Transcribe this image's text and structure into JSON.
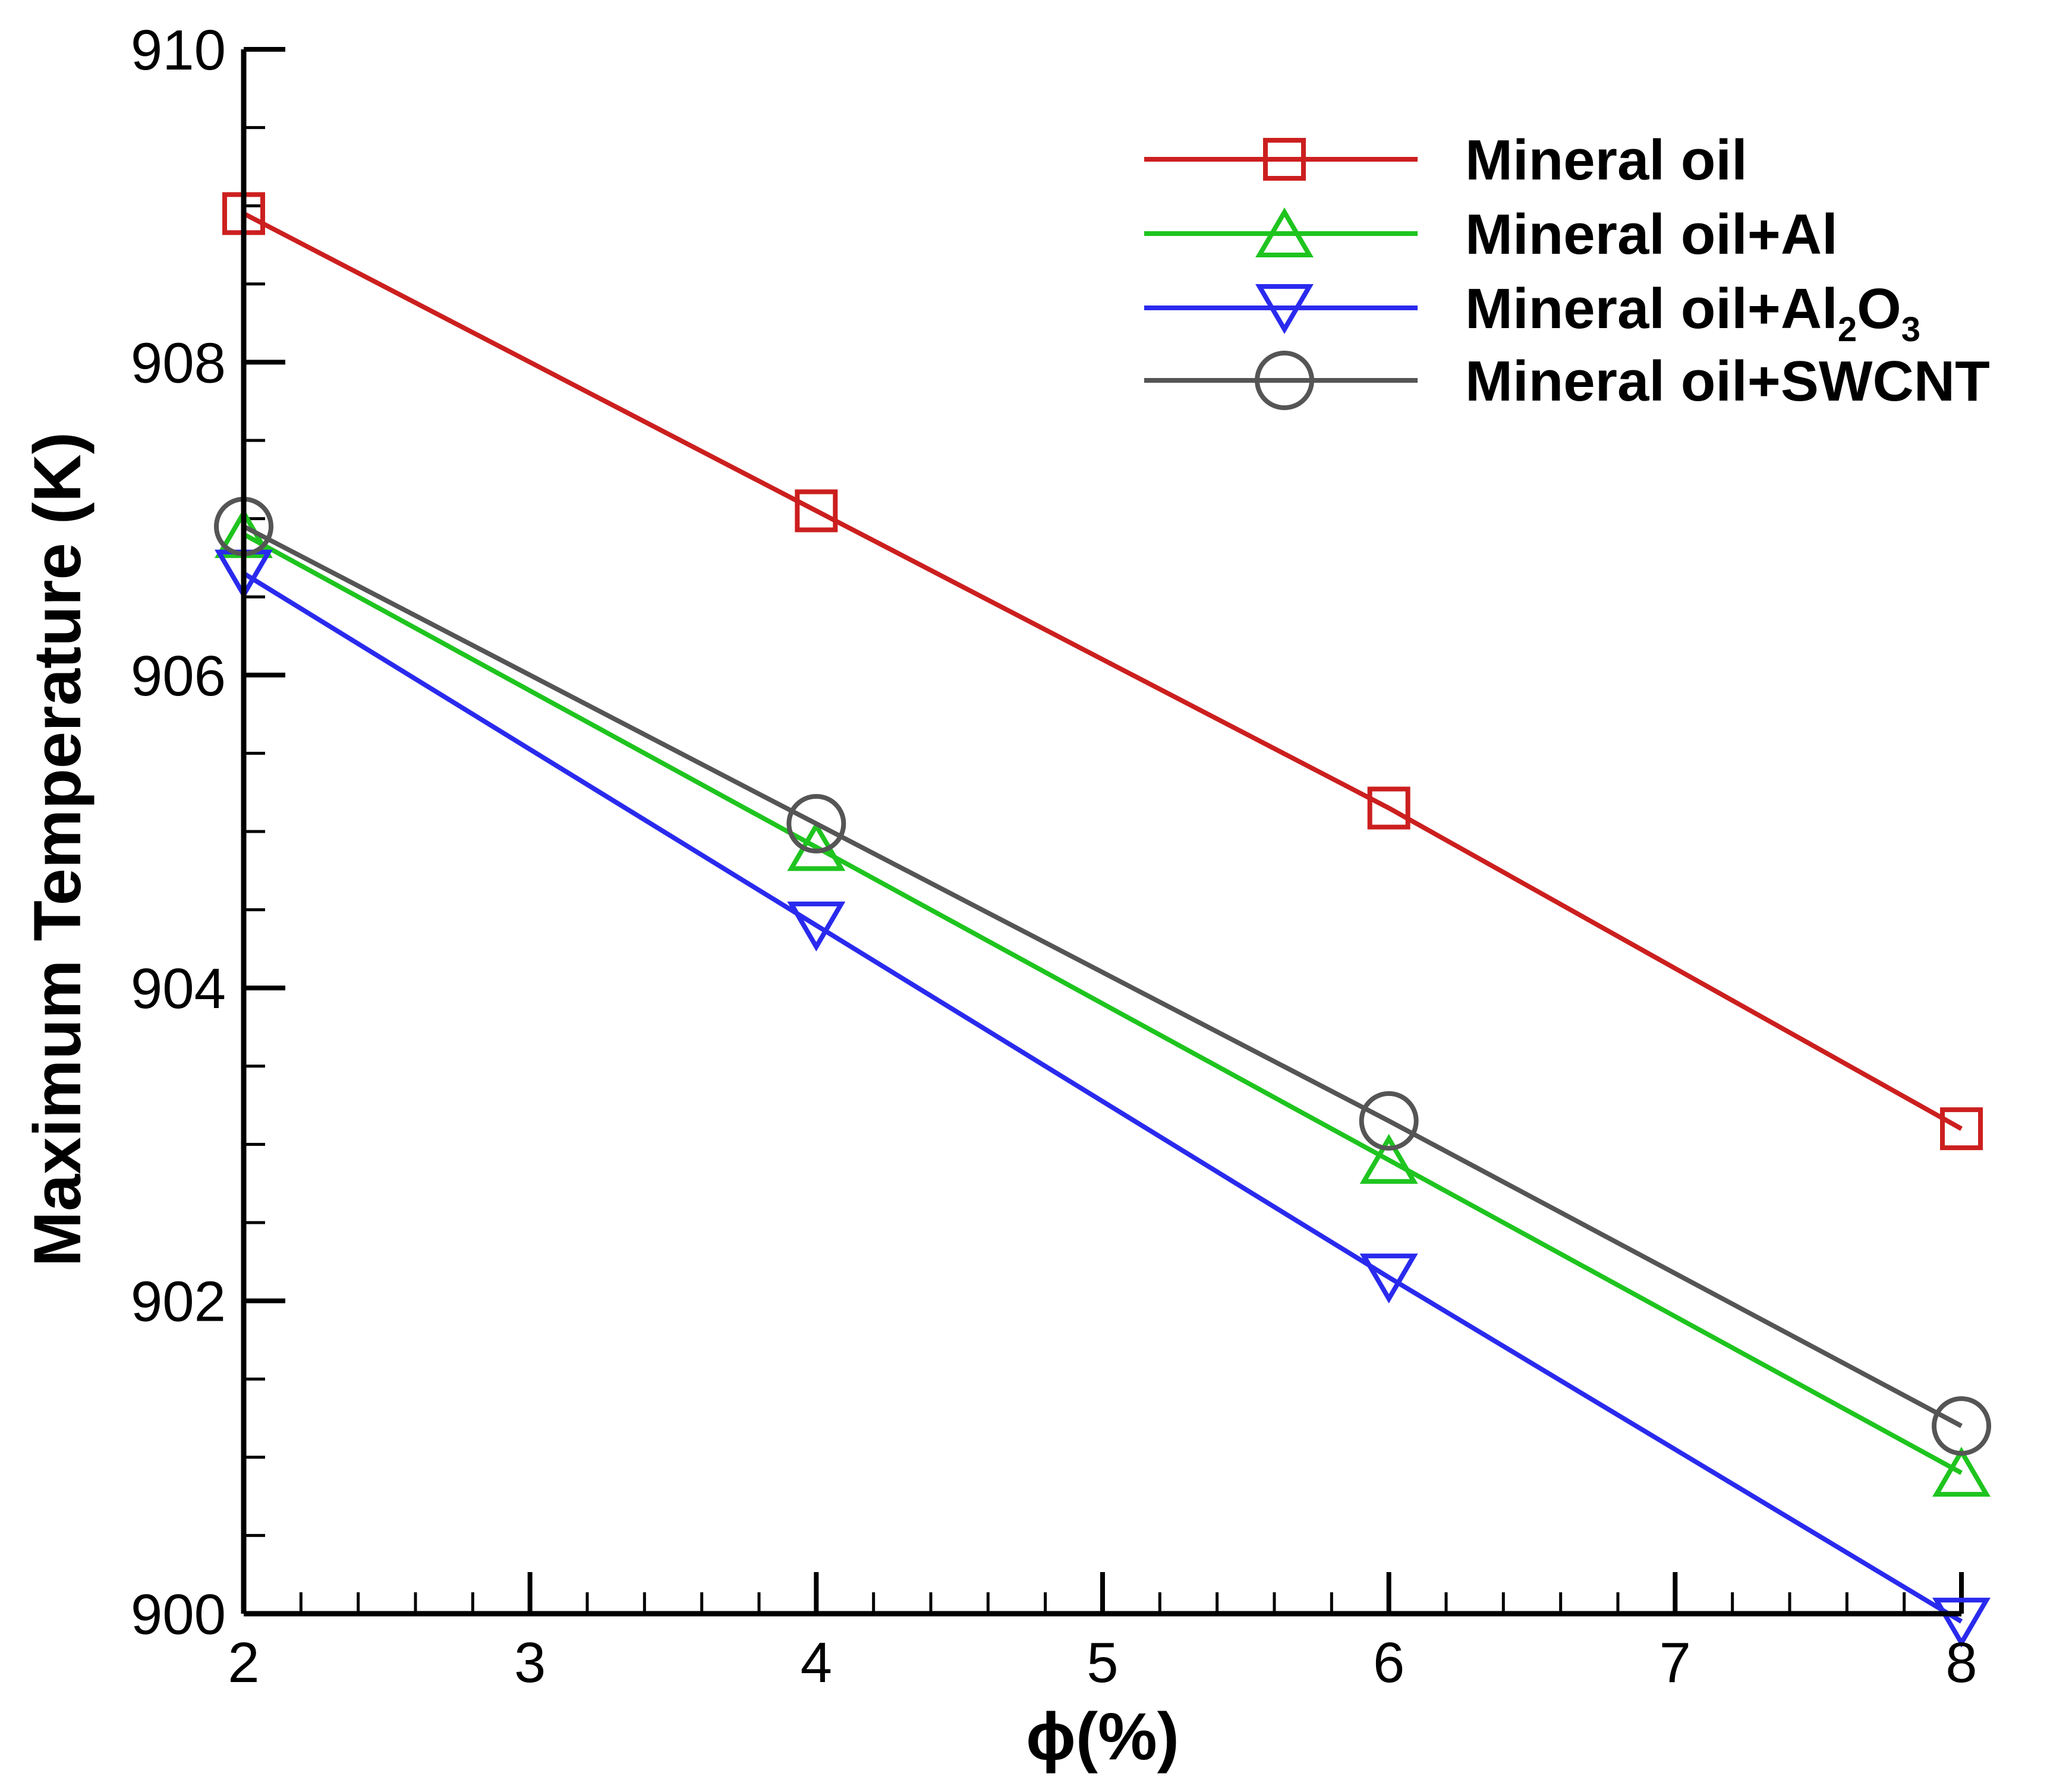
{
  "chart_data": {
    "type": "line",
    "title": "",
    "xlabel": "ϕ(%)",
    "ylabel": "Maximum Temperature (K)",
    "xlim": [
      2,
      8
    ],
    "ylim": [
      900,
      910
    ],
    "x_ticks": [
      2,
      3,
      4,
      5,
      6,
      7,
      8
    ],
    "y_ticks": [
      900,
      902,
      904,
      906,
      908,
      910
    ],
    "x_minor_step": 0.2,
    "y_minor_step": 0.5,
    "legend_position": "top-right",
    "series": [
      {
        "name": "Mineral oil",
        "legend": {
          "base": "Mineral oil",
          "sub1": "",
          "mid": "",
          "sub2": ""
        },
        "color": "#cc1f1f",
        "marker": "square",
        "x": [
          2,
          4,
          6,
          8
        ],
        "y": [
          908.95,
          907.05,
          905.15,
          903.1
        ]
      },
      {
        "name": "Mineral oil+Al",
        "legend": {
          "base": "Mineral oil+Al",
          "sub1": "",
          "mid": "",
          "sub2": ""
        },
        "color": "#1fc41f",
        "marker": "triangle-up",
        "x": [
          2,
          4,
          6,
          8
        ],
        "y": [
          906.9,
          904.9,
          902.9,
          900.9
        ]
      },
      {
        "name": "Mineral oil+Al2O3",
        "legend": {
          "base": "Mineral oil+Al",
          "sub1": "2",
          "mid": "O",
          "sub2": "3"
        },
        "color": "#2a2aee",
        "marker": "triangle-down",
        "x": [
          2,
          4,
          6,
          8
        ],
        "y": [
          906.65,
          904.4,
          902.15,
          899.95
        ]
      },
      {
        "name": "Mineral oil+SWCNT",
        "legend": {
          "base": "Mineral oil+SWCNT",
          "sub1": "",
          "mid": "",
          "sub2": ""
        },
        "color": "#555555",
        "marker": "circle",
        "x": [
          2,
          4,
          6,
          8
        ],
        "y": [
          906.95,
          905.05,
          903.15,
          901.2
        ]
      }
    ]
  }
}
